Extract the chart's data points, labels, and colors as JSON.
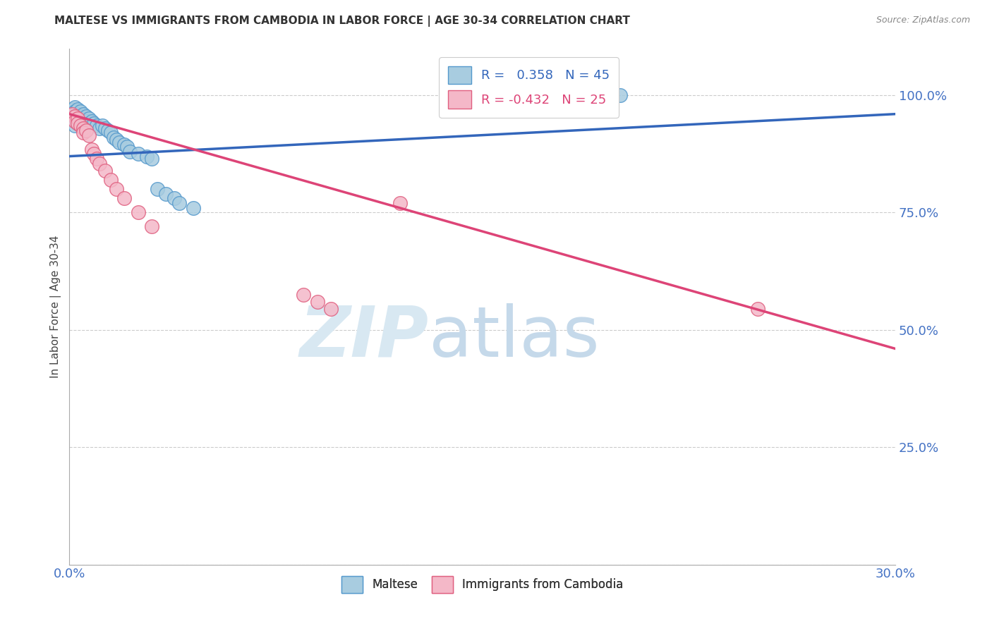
{
  "title": "MALTESE VS IMMIGRANTS FROM CAMBODIA IN LABOR FORCE | AGE 30-34 CORRELATION CHART",
  "source": "Source: ZipAtlas.com",
  "ylabel": "In Labor Force | Age 30-34",
  "xmin": 0.0,
  "xmax": 0.3,
  "ymin": 0.0,
  "ymax": 1.1,
  "yticks": [
    0.0,
    0.25,
    0.5,
    0.75,
    1.0
  ],
  "ytick_labels": [
    "",
    "25.0%",
    "50.0%",
    "75.0%",
    "100.0%"
  ],
  "xticks": [
    0.0,
    0.05,
    0.1,
    0.15,
    0.2,
    0.25,
    0.3
  ],
  "xtick_labels": [
    "0.0%",
    "",
    "",
    "",
    "",
    "",
    "30.0%"
  ],
  "blue_r": 0.358,
  "blue_n": 45,
  "pink_r": -0.432,
  "pink_n": 25,
  "blue_color": "#a8cce0",
  "pink_color": "#f4b8c8",
  "blue_edge_color": "#5599cc",
  "pink_edge_color": "#e06080",
  "blue_line_color": "#3366bb",
  "pink_line_color": "#dd4477",
  "blue_scatter_x": [
    0.001,
    0.001,
    0.001,
    0.002,
    0.002,
    0.002,
    0.002,
    0.002,
    0.003,
    0.003,
    0.003,
    0.003,
    0.004,
    0.004,
    0.004,
    0.005,
    0.005,
    0.005,
    0.006,
    0.006,
    0.007,
    0.007,
    0.008,
    0.009,
    0.01,
    0.011,
    0.012,
    0.013,
    0.014,
    0.015,
    0.016,
    0.017,
    0.018,
    0.02,
    0.021,
    0.022,
    0.025,
    0.028,
    0.03,
    0.032,
    0.035,
    0.038,
    0.04,
    0.045,
    0.2
  ],
  "blue_scatter_y": [
    0.97,
    0.96,
    0.95,
    0.975,
    0.965,
    0.955,
    0.945,
    0.935,
    0.97,
    0.96,
    0.95,
    0.94,
    0.965,
    0.955,
    0.945,
    0.96,
    0.95,
    0.94,
    0.955,
    0.945,
    0.95,
    0.94,
    0.945,
    0.94,
    0.935,
    0.93,
    0.935,
    0.93,
    0.925,
    0.92,
    0.91,
    0.905,
    0.9,
    0.895,
    0.89,
    0.88,
    0.875,
    0.87,
    0.865,
    0.8,
    0.79,
    0.78,
    0.77,
    0.76,
    1.0
  ],
  "pink_scatter_x": [
    0.001,
    0.002,
    0.002,
    0.003,
    0.003,
    0.004,
    0.005,
    0.005,
    0.006,
    0.007,
    0.008,
    0.009,
    0.01,
    0.011,
    0.013,
    0.015,
    0.017,
    0.02,
    0.025,
    0.03,
    0.085,
    0.09,
    0.095,
    0.25,
    0.12
  ],
  "pink_scatter_y": [
    0.96,
    0.955,
    0.945,
    0.95,
    0.94,
    0.935,
    0.93,
    0.92,
    0.925,
    0.915,
    0.885,
    0.875,
    0.865,
    0.855,
    0.84,
    0.82,
    0.8,
    0.78,
    0.75,
    0.72,
    0.575,
    0.56,
    0.545,
    0.545,
    0.77
  ],
  "blue_trendline_x": [
    0.0,
    0.3
  ],
  "blue_trendline_y": [
    0.87,
    0.96
  ],
  "pink_trendline_x": [
    0.0,
    0.3
  ],
  "pink_trendline_y": [
    0.96,
    0.46
  ]
}
